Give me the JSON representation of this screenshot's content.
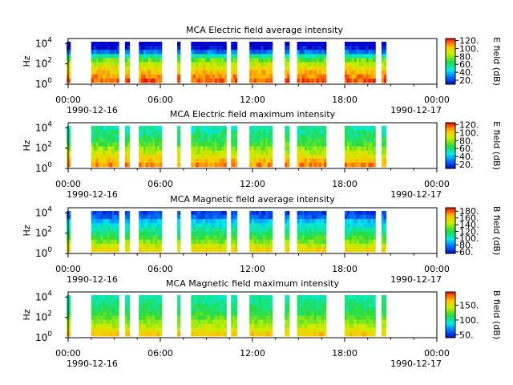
{
  "chart_data": [
    {
      "type": "heatmap",
      "title": "MCA  Electric field average intensity",
      "ylabel": "Hz",
      "yticks": [
        "10^0",
        "10^4",
        "10^2",
        "10^0"
      ],
      "xticks": [
        "00:00",
        "06:00",
        "12:00",
        "18:00",
        "00:00"
      ],
      "xdate_start": "1990-12-16",
      "xdate_end": "1990-12-17",
      "x_range": [
        "1990-12-16 00:00",
        "1990-12-17 00:00"
      ],
      "y_range_log10": [
        0,
        4.5
      ],
      "colorbar": {
        "label": "E field (dB)",
        "ticks": [
          "120.",
          "100.",
          "80.",
          "60.",
          "40.",
          "20."
        ],
        "range": [
          10,
          125
        ]
      },
      "colormap": "rainbow",
      "segments_hours": [
        [
          -0.1,
          0.15
        ],
        [
          1.5,
          3.3
        ],
        [
          3.7,
          4.0
        ],
        [
          4.6,
          6.1
        ],
        [
          7.1,
          7.3
        ],
        [
          8.0,
          10.3
        ],
        [
          10.6,
          11.0
        ],
        [
          11.8,
          13.3
        ],
        [
          14.1,
          14.4
        ],
        [
          14.9,
          16.8
        ],
        [
          18.0,
          20.0
        ],
        [
          20.4,
          20.7
        ]
      ],
      "intensity_profile": [
        5,
        12,
        30,
        55,
        75,
        88,
        98,
        105,
        112,
        118
      ]
    },
    {
      "type": "heatmap",
      "title": "MCA  Electric field maximum intensity",
      "ylabel": "Hz",
      "yticks": [
        "10^4",
        "10^2",
        "10^0"
      ],
      "xticks": [
        "00:00",
        "06:00",
        "12:00",
        "18:00",
        "00:00"
      ],
      "xdate_start": "1990-12-16",
      "xdate_end": "1990-12-17",
      "x_range": [
        "1990-12-16 00:00",
        "1990-12-17 00:00"
      ],
      "y_range_log10": [
        0,
        4.5
      ],
      "colorbar": {
        "label": "E field (dB)",
        "ticks": [
          "120.",
          "100.",
          "80.",
          "60.",
          "40.",
          "20."
        ],
        "range": [
          10,
          125
        ]
      },
      "colormap": "rainbow",
      "segments_hours": [
        [
          -0.1,
          0.15
        ],
        [
          1.5,
          3.3
        ],
        [
          3.7,
          4.0
        ],
        [
          4.6,
          6.1
        ],
        [
          7.1,
          7.3
        ],
        [
          8.0,
          10.3
        ],
        [
          10.6,
          11.0
        ],
        [
          11.8,
          13.3
        ],
        [
          14.1,
          14.4
        ],
        [
          14.9,
          16.8
        ],
        [
          18.0,
          20.0
        ],
        [
          20.4,
          20.7
        ]
      ],
      "intensity_profile": [
        55,
        58,
        62,
        66,
        72,
        80,
        88,
        96,
        104,
        112
      ]
    },
    {
      "type": "heatmap",
      "title": "MCA  Magnetic field average intensity",
      "ylabel": "Hz",
      "yticks": [
        "10^4",
        "10^2",
        "10^0"
      ],
      "xticks": [
        "00:00",
        "06:00",
        "12:00",
        "18:00",
        "00:00"
      ],
      "xdate_start": "1990-12-16",
      "xdate_end": "1990-12-17",
      "x_range": [
        "1990-12-16 00:00",
        "1990-12-17 00:00"
      ],
      "y_range_log10": [
        0,
        4.5
      ],
      "colorbar": {
        "label": "B field (dB)",
        "ticks": [
          "180.",
          "160.",
          "140.",
          "120.",
          "100.",
          "80.",
          "60."
        ],
        "range": [
          55,
          190
        ]
      },
      "colormap": "rainbow",
      "segments_hours": [
        [
          -0.1,
          0.15
        ],
        [
          1.5,
          3.3
        ],
        [
          3.7,
          4.0
        ],
        [
          4.6,
          6.1
        ],
        [
          7.1,
          7.3
        ],
        [
          8.0,
          10.3
        ],
        [
          10.6,
          11.0
        ],
        [
          11.8,
          13.3
        ],
        [
          14.1,
          14.4
        ],
        [
          14.9,
          16.8
        ],
        [
          18.0,
          20.0
        ],
        [
          20.4,
          20.7
        ]
      ],
      "intensity_profile": [
        68,
        75,
        92,
        100,
        108,
        116,
        125,
        135,
        148,
        160
      ]
    },
    {
      "type": "heatmap",
      "title": "MCA  Magnetic field maximum intensity",
      "ylabel": "Hz",
      "yticks": [
        "10^4",
        "10^2",
        "10^0"
      ],
      "xticks": [
        "00:00",
        "06:00",
        "12:00",
        "18:00",
        "00:00"
      ],
      "xdate_start": "1990-12-16",
      "xdate_end": "1990-12-17",
      "x_range": [
        "1990-12-16 00:00",
        "1990-12-17 00:00"
      ],
      "y_range_log10": [
        0,
        4.5
      ],
      "colorbar": {
        "label": "B field (dB)",
        "ticks": [
          "150.",
          "100.",
          "50."
        ],
        "range": [
          40,
          195
        ]
      },
      "colormap": "rainbow",
      "segments_hours": [
        [
          -0.1,
          0.15
        ],
        [
          1.5,
          3.3
        ],
        [
          3.7,
          4.0
        ],
        [
          4.6,
          6.1
        ],
        [
          7.1,
          7.3
        ],
        [
          8.0,
          10.3
        ],
        [
          10.6,
          11.0
        ],
        [
          11.8,
          13.3
        ],
        [
          14.1,
          14.4
        ],
        [
          14.9,
          16.8
        ],
        [
          18.0,
          20.0
        ],
        [
          20.4,
          20.7
        ]
      ],
      "intensity_profile": [
        100,
        104,
        108,
        112,
        118,
        126,
        134,
        142,
        152,
        165
      ]
    }
  ]
}
